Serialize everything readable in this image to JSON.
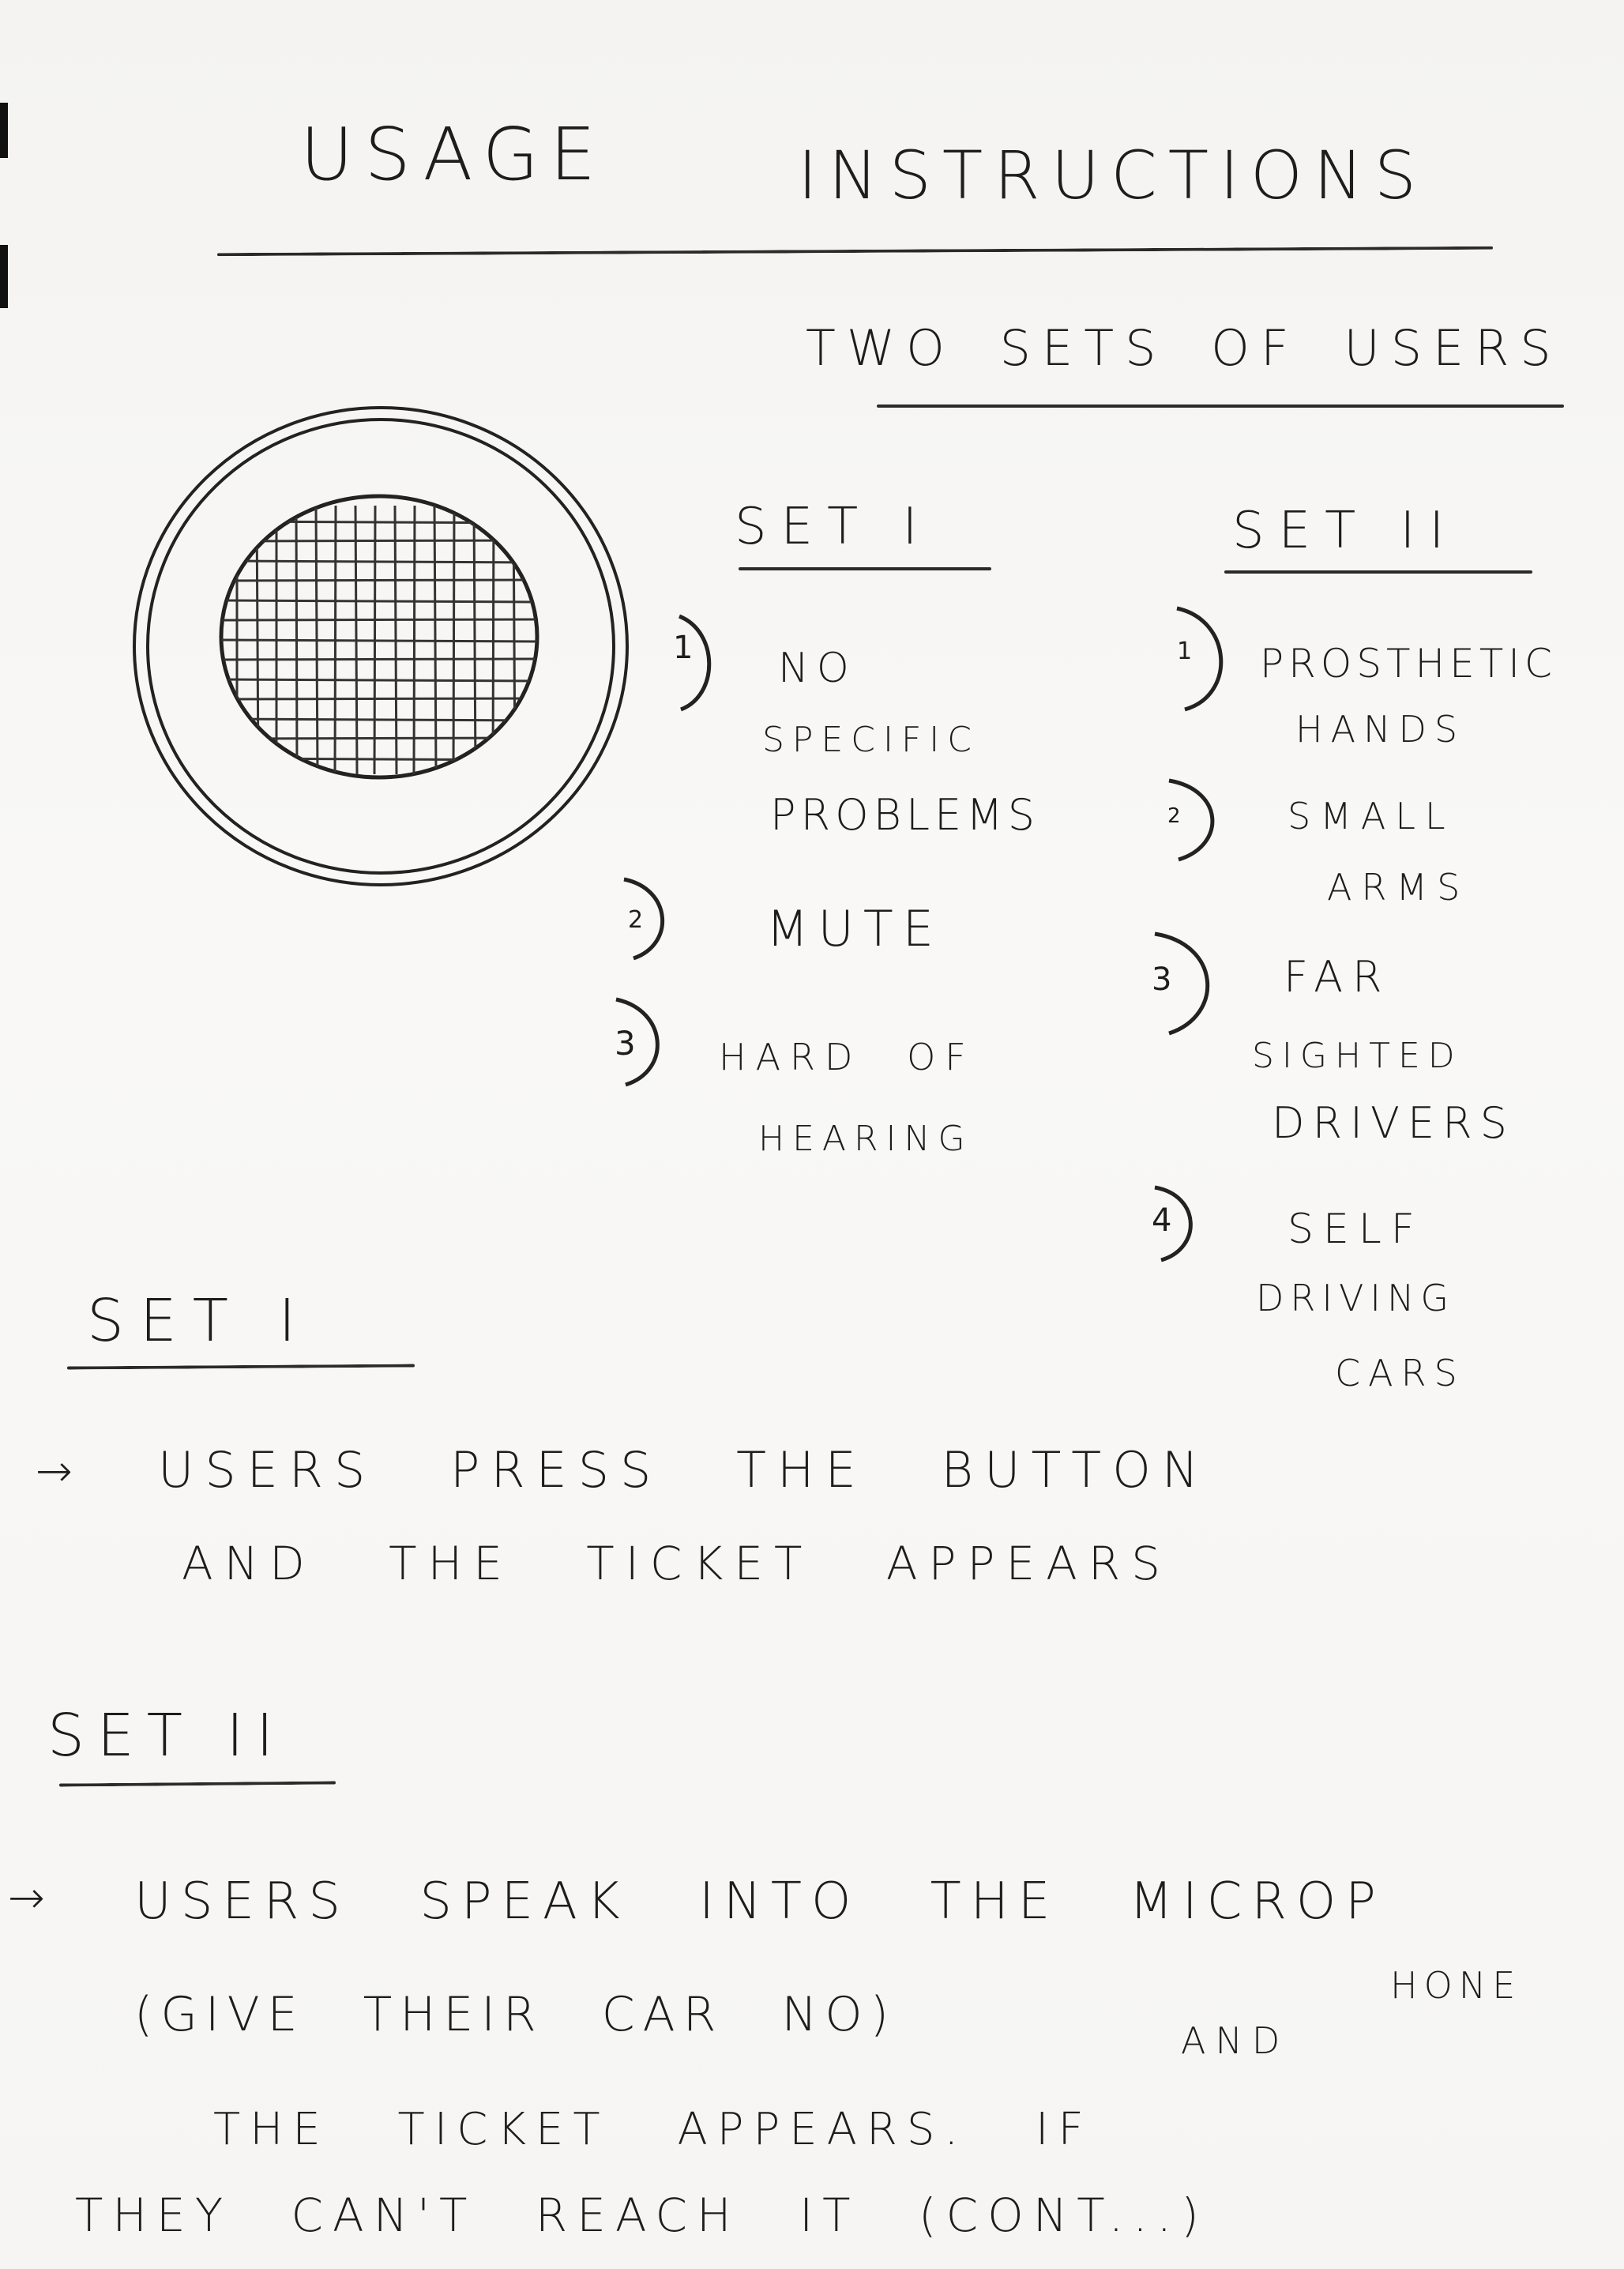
{
  "document": {
    "title_word1": "Usage",
    "title_word2": "Instructions",
    "subtitle": "Two sets of users"
  },
  "set1_column": {
    "heading": "Set I",
    "items": [
      {
        "num": "1",
        "line1": "No",
        "line2": "specific",
        "line3": "Problems"
      },
      {
        "num": "2",
        "line1": "Mute"
      },
      {
        "num": "3",
        "line1": "Hard of",
        "line2": "Hearing"
      }
    ]
  },
  "set2_column": {
    "heading": "Set II",
    "items": [
      {
        "num": "1",
        "line1": "Prosthetic",
        "line2": "Hands"
      },
      {
        "num": "2",
        "line1": "Small",
        "line2": "Arms"
      },
      {
        "num": "3",
        "line1": "Far",
        "line2": "Sighted",
        "line3": "Drivers"
      },
      {
        "num": "4",
        "line1": "Self",
        "line2": "Driving",
        "line3": "Cars"
      }
    ]
  },
  "section_set1": {
    "heading": "Set I",
    "arrow": "→",
    "line1": "Users press the button",
    "line2": "and the ticket appears"
  },
  "section_set2": {
    "heading": "Set II",
    "arrow": "→",
    "line1": "Users speak into the microp",
    "line1_cont": "hone",
    "line2": "(Give their car No)",
    "line2_end": "and",
    "line3": "the ticket appears. If",
    "line4": "they can't reach it (cont...)"
  },
  "drawing": {
    "icon": "speaker-grille-icon"
  }
}
